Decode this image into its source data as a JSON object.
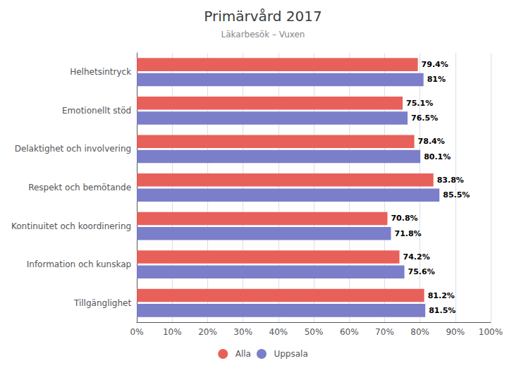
{
  "chart_data": {
    "type": "bar",
    "orientation": "horizontal",
    "title": "Primärvård 2017",
    "subtitle": "Läkarbesök – Vuxen",
    "categories": [
      "Helhetsintryck",
      "Emotionellt stöd",
      "Delaktighet och involvering",
      "Respekt och bemötande",
      "Kontinuitet och koordinering",
      "Information och kunskap",
      "Tillgänglighet"
    ],
    "series": [
      {
        "name": "Alla",
        "color": "#E8605A",
        "values": [
          79.4,
          75.1,
          78.4,
          83.8,
          70.8,
          74.2,
          81.2
        ],
        "value_labels": [
          "79.4%",
          "75.1%",
          "78.4%",
          "83.8%",
          "70.8%",
          "74.2%",
          "81.2%"
        ]
      },
      {
        "name": "Uppsala",
        "color": "#7B7EC8",
        "values": [
          81.0,
          76.5,
          80.1,
          85.5,
          71.8,
          75.6,
          81.5
        ],
        "value_labels": [
          "81%",
          "76.5%",
          "80.1%",
          "85.5%",
          "71.8%",
          "75.6%",
          "81.5%"
        ]
      }
    ],
    "xlim": [
      0,
      100
    ],
    "xticks": [
      {
        "value": 0,
        "label": "0%"
      },
      {
        "value": 10,
        "label": "10%"
      },
      {
        "value": 20,
        "label": "20%"
      },
      {
        "value": 30,
        "label": "30%"
      },
      {
        "value": 40,
        "label": "40%"
      },
      {
        "value": 50,
        "label": "50%"
      },
      {
        "value": 60,
        "label": "60%"
      },
      {
        "value": 70,
        "label": "70%"
      },
      {
        "value": 80,
        "label": "80%"
      },
      {
        "value": 90,
        "label": "90%"
      },
      {
        "value": 100,
        "label": "100%"
      }
    ],
    "grid": true,
    "legend": "bottom",
    "data_labels": true
  }
}
